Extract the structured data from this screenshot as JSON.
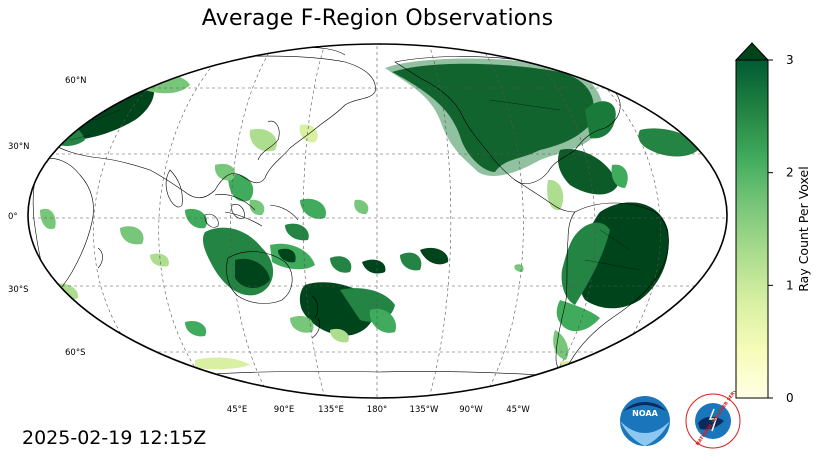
{
  "title": "Average F-Region Observations",
  "timestamp": "2025-02-19 12:15Z",
  "colorbar": {
    "label": "Ray Count Per Voxel",
    "min": 0,
    "max": 3,
    "ticks": [
      "0",
      "1",
      "2",
      "3"
    ],
    "extend": "max",
    "colormap": "YlGn",
    "color_low": "#ffffe5",
    "color_high": "#00441b"
  },
  "map": {
    "projection": "Robinson",
    "central_longitude": 180,
    "gridlines": "dashed",
    "lat_labels": [
      "60°N",
      "30°N",
      "0°",
      "30°S",
      "60°S"
    ],
    "lat_values": [
      60,
      30,
      0,
      -30,
      -60
    ],
    "lon_labels": [
      "45°E",
      "90°E",
      "135°E",
      "180°",
      "135°W",
      "90°W",
      "45°W"
    ],
    "lon_values": [
      45,
      90,
      135,
      180,
      -135,
      -90,
      -45
    ],
    "ocean_color": "#ffffff",
    "coastline_color": "#000000"
  },
  "logos": {
    "noaa": "NOAA",
    "nws": "NATIONAL WEATHER SERVICE"
  }
}
